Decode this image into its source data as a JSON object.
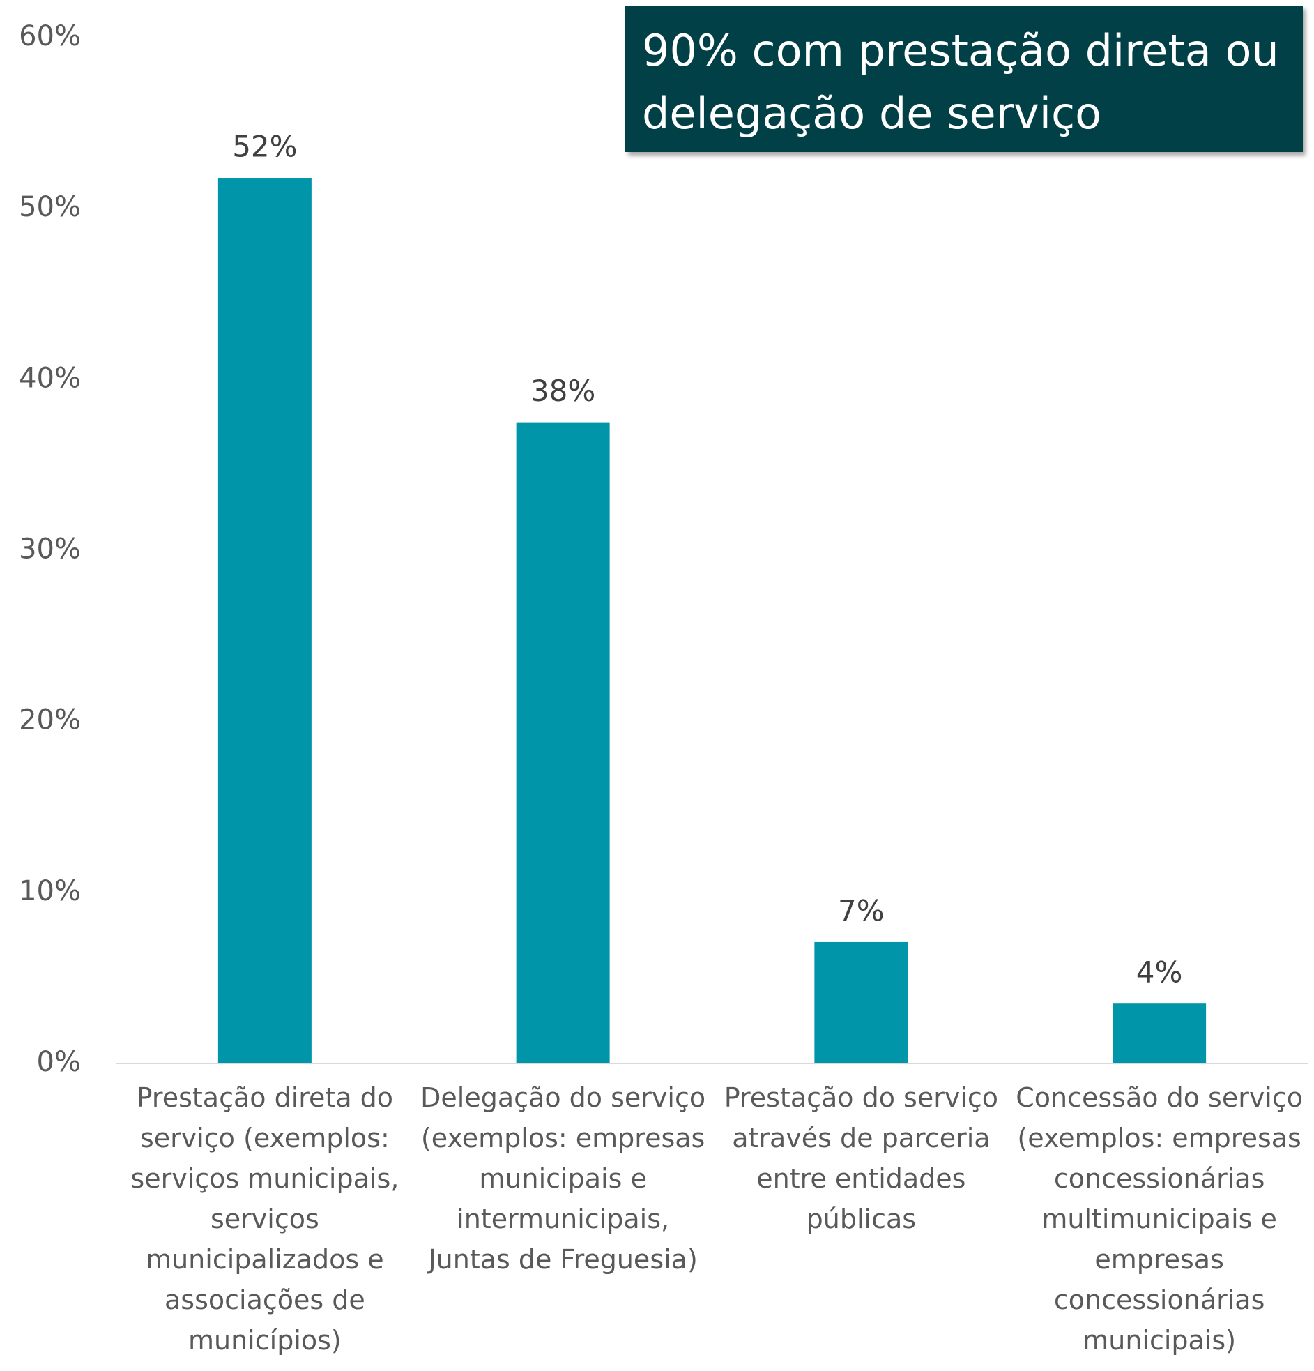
{
  "chart_data": {
    "type": "bar",
    "annotation": "90% com prestação direta ou delegação de serviço",
    "categories": [
      "Prestação direta do serviço (exemplos: serviços municipais, serviços municipalizados e associações de municípios)",
      "Delegação do serviço (exemplos: empresas municipais e intermunicipais, Juntas de Freguesia)",
      "Prestação do serviço através de parceria entre entidades públicas",
      "Concessão do serviço (exemplos: empresas concessionárias multimunicipais e empresas concessionárias municipais)"
    ],
    "values": [
      51.8,
      37.5,
      7.1,
      3.5
    ],
    "value_labels": [
      "52%",
      "38%",
      "7%",
      "4%"
    ],
    "color": "#0095a8",
    "ylim": [
      0,
      60
    ],
    "yticks": [
      {
        "value": 0,
        "label": "0%"
      },
      {
        "value": 10,
        "label": "10%"
      },
      {
        "value": 20,
        "label": "20%"
      },
      {
        "value": 30,
        "label": "30%"
      },
      {
        "value": 40,
        "label": "40%"
      },
      {
        "value": 50,
        "label": "50%"
      },
      {
        "value": 60,
        "label": "60%"
      }
    ],
    "grid": false
  }
}
